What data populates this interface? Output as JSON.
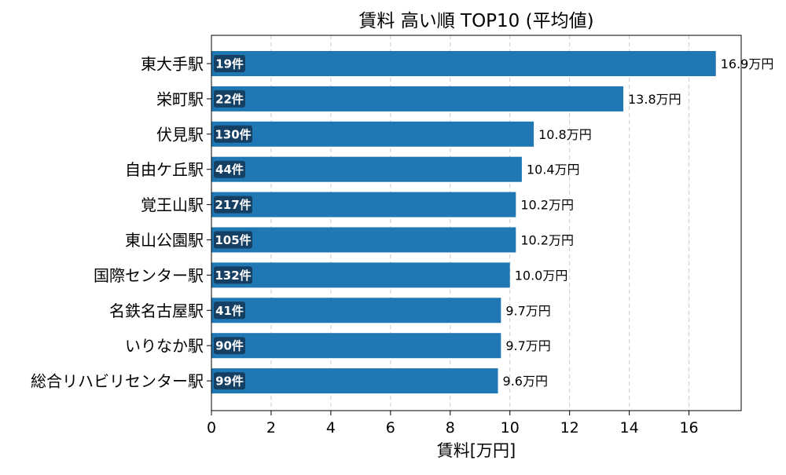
{
  "chart_data": {
    "type": "bar",
    "orientation": "horizontal",
    "title": "賃料 高い順 TOP10 (平均値)",
    "xlabel": "賃料[万円]",
    "ylabel": "",
    "xlim": [
      0,
      17.75
    ],
    "xticks": [
      0,
      2,
      4,
      6,
      8,
      10,
      12,
      14,
      16
    ],
    "grid": "x-dashed",
    "value_suffix": "万円",
    "count_suffix": "件",
    "colors": {
      "bar": "#1f77b4",
      "badge": "#153f63",
      "grid": "#cccccc",
      "text": "#000000"
    },
    "categories": [
      "東大手駅",
      "栄町駅",
      "伏見駅",
      "自由ケ丘駅",
      "覚王山駅",
      "東山公園駅",
      "国際センター駅",
      "名鉄名古屋駅",
      "いりなか駅",
      "総合リハビリセンター駅"
    ],
    "values": [
      16.9,
      13.8,
      10.8,
      10.4,
      10.2,
      10.2,
      10.0,
      9.7,
      9.7,
      9.6
    ],
    "counts": [
      19,
      22,
      130,
      44,
      217,
      105,
      132,
      41,
      90,
      99
    ]
  }
}
